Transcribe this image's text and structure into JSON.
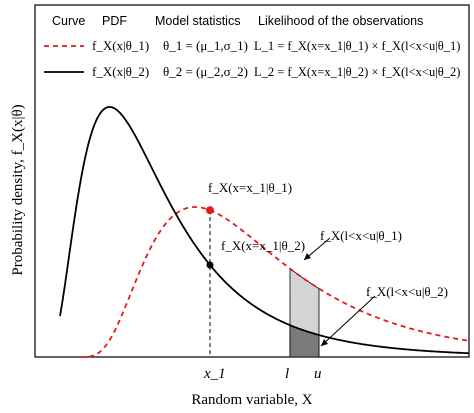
{
  "chart_data": {
    "type": "line",
    "ylabel": "Probability density, f_X(x|θ)",
    "xlabel": "Random variable, X",
    "header": {
      "curve": "Curve",
      "pdf": "PDF",
      "model": "Model statistics",
      "likelihood": "Likelihood of the observations"
    },
    "legend_rows": [
      {
        "line_style": "dashed",
        "color": "#e41a1c",
        "pdf": "f_X(x|θ_1)",
        "model": "θ_1 = (μ_1,σ_1)",
        "likelihood": "L_1 = f_X(x=x_1|θ_1) × f_X(l<x<u|θ_1)"
      },
      {
        "line_style": "solid",
        "color": "#000000",
        "pdf": "f_X(x|θ_2)",
        "model": "θ_2 = (μ_2,σ_2)",
        "likelihood": "L_2 = f_X(x=x_1|θ_2) × f_X(l<x<u|θ_2)"
      }
    ],
    "x_ticks": [
      "x_1",
      "l",
      "u"
    ],
    "annotations": {
      "point1": "f_X(x=x_1|θ_1)",
      "point2": "f_X(x=x_1|θ_2)",
      "area1": "f_X(l<x<u|θ_1)",
      "area2": "f_X(l<x<u|θ_2)"
    },
    "colors": {
      "curve1": "#e41a1c",
      "curve2": "#000000",
      "point1": "#e41a1c",
      "point2": "#000000",
      "area1_fill": "#d4d4d4",
      "area2_fill": "#7a7a7a"
    }
  }
}
